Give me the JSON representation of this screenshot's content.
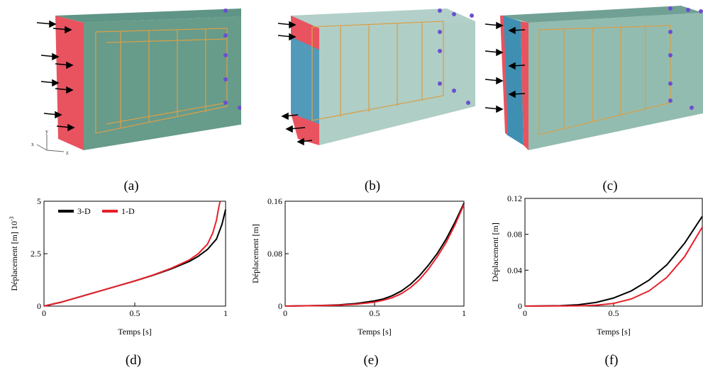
{
  "panels_3d": [
    {
      "caption": "(a)",
      "axes_labels": [
        "x",
        "y",
        "z"
      ]
    },
    {
      "caption": "(b)"
    },
    {
      "caption": "(c)"
    }
  ],
  "colors": {
    "beam_face": "#5f9684",
    "beam_top": "#4e8a79",
    "loaded_face": "#e8535f",
    "blue_face": "#3f8fb3",
    "rebar": "#d6a04a",
    "series_3d": "#000000",
    "series_1d": "#e8202a"
  },
  "chart_data": [
    {
      "type": "line",
      "caption": "(d)",
      "xlabel": "Temps [s]",
      "ylabel": "Déplacement [m] 10",
      "ylabel_exponent": "-3",
      "xlim": [
        0,
        1
      ],
      "ylim": [
        0,
        5
      ],
      "xticks": [
        0,
        0.5,
        1
      ],
      "xtick_labels": [
        "0",
        "0.5",
        "1"
      ],
      "yticks": [
        0,
        2.5,
        5
      ],
      "ytick_labels": [
        "0",
        "2.5",
        "5"
      ],
      "legend": {
        "placement": "top-left",
        "entries": [
          "3-D",
          "1-D"
        ]
      },
      "series": [
        {
          "name": "3-D",
          "color": "#000000",
          "x": [
            0,
            0.1,
            0.2,
            0.3,
            0.4,
            0.5,
            0.6,
            0.7,
            0.8,
            0.85,
            0.9,
            0.95,
            0.98,
            1.0
          ],
          "y": [
            0,
            0.2,
            0.45,
            0.7,
            0.95,
            1.2,
            1.47,
            1.77,
            2.13,
            2.38,
            2.7,
            3.2,
            3.9,
            4.6
          ]
        },
        {
          "name": "1-D",
          "color": "#e8202a",
          "x": [
            0,
            0.1,
            0.2,
            0.3,
            0.4,
            0.5,
            0.6,
            0.7,
            0.8,
            0.85,
            0.9,
            0.93,
            0.95,
            0.96,
            0.97
          ],
          "y": [
            0,
            0.2,
            0.45,
            0.7,
            0.95,
            1.2,
            1.48,
            1.8,
            2.2,
            2.5,
            2.95,
            3.5,
            4.1,
            4.6,
            5.0
          ]
        }
      ]
    },
    {
      "type": "line",
      "caption": "(e)",
      "xlabel": "Temps [s]",
      "ylabel": "Déplacement [m]",
      "xlim": [
        0,
        1
      ],
      "ylim": [
        0,
        0.16
      ],
      "xticks": [
        0,
        0.5,
        1
      ],
      "xtick_labels": [
        "0",
        "0.5",
        "1"
      ],
      "yticks": [
        0,
        0.08,
        0.16
      ],
      "ytick_labels": [
        "0",
        "0.08",
        "0.16"
      ],
      "series": [
        {
          "name": "3-D",
          "color": "#000000",
          "x": [
            0,
            0.2,
            0.3,
            0.4,
            0.5,
            0.55,
            0.6,
            0.65,
            0.7,
            0.75,
            0.8,
            0.85,
            0.9,
            0.95,
            1.0
          ],
          "y": [
            0,
            0.001,
            0.002,
            0.004,
            0.008,
            0.011,
            0.016,
            0.023,
            0.033,
            0.046,
            0.062,
            0.08,
            0.102,
            0.128,
            0.157
          ]
        },
        {
          "name": "1-D",
          "color": "#e8202a",
          "x": [
            0,
            0.2,
            0.3,
            0.4,
            0.5,
            0.55,
            0.6,
            0.65,
            0.7,
            0.75,
            0.8,
            0.85,
            0.9,
            0.95,
            1.0
          ],
          "y": [
            0,
            0.0008,
            0.0015,
            0.003,
            0.006,
            0.009,
            0.013,
            0.019,
            0.028,
            0.04,
            0.056,
            0.075,
            0.097,
            0.124,
            0.155
          ]
        }
      ]
    },
    {
      "type": "line",
      "caption": "(f)",
      "xlabel": "Temps [s]",
      "ylabel": "Déplacement [m]",
      "xlim": [
        0,
        1
      ],
      "ylim": [
        0,
        0.12
      ],
      "xticks": [
        0,
        0.5
      ],
      "xtick_labels": [
        "0",
        "0.5"
      ],
      "yticks": [
        0,
        0.04,
        0.08,
        0.12
      ],
      "ytick_labels": [
        "0",
        "0.04",
        "0.08",
        "0.12"
      ],
      "series": [
        {
          "name": "3-D",
          "color": "#000000",
          "x": [
            0,
            0.2,
            0.3,
            0.4,
            0.5,
            0.6,
            0.7,
            0.8,
            0.9,
            1.0
          ],
          "y": [
            0,
            0.0005,
            0.0015,
            0.004,
            0.009,
            0.017,
            0.029,
            0.046,
            0.07,
            0.1
          ]
        },
        {
          "name": "1-D",
          "color": "#e8202a",
          "x": [
            0,
            0.3,
            0.4,
            0.5,
            0.6,
            0.7,
            0.8,
            0.9,
            1.0
          ],
          "y": [
            0,
            0.0003,
            0.001,
            0.003,
            0.008,
            0.017,
            0.032,
            0.055,
            0.088
          ]
        }
      ]
    }
  ]
}
